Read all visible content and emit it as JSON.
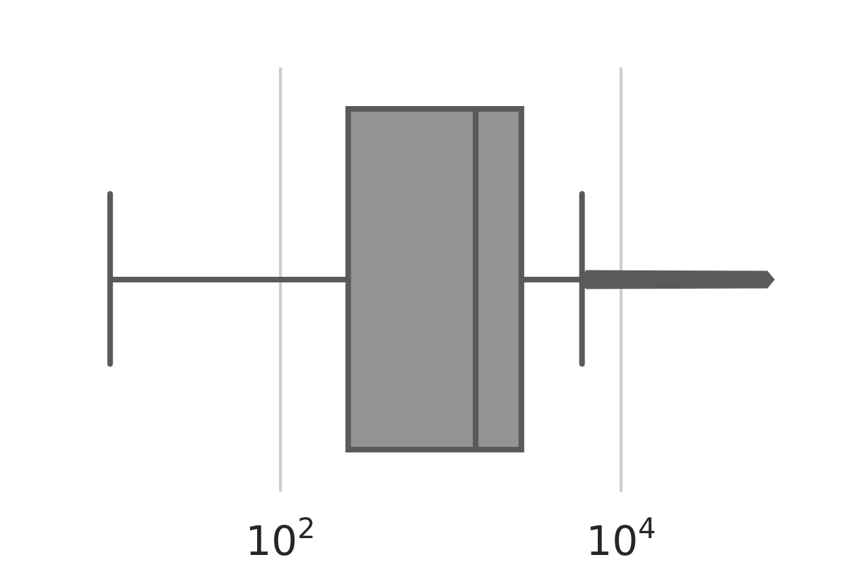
{
  "chart_data": {
    "type": "box",
    "orientation": "horizontal",
    "x_scale": "log",
    "x_range": [
      3.3,
      125000
    ],
    "grid": true,
    "x_ticks": [
      {
        "value": 100,
        "base": "10",
        "exponent": "2"
      },
      {
        "value": 10000,
        "base": "10",
        "exponent": "4"
      }
    ],
    "box": {
      "whisker_low": 10,
      "q1": 250,
      "median": 1400,
      "q3": 2600,
      "whisker_high": 5900,
      "outliers_min": 5900,
      "outliers_max": 75000
    },
    "colors": {
      "box_fill": "#939393",
      "line": "#5a5a5a",
      "grid": "#cccccc",
      "tick_text": "#262626"
    }
  }
}
